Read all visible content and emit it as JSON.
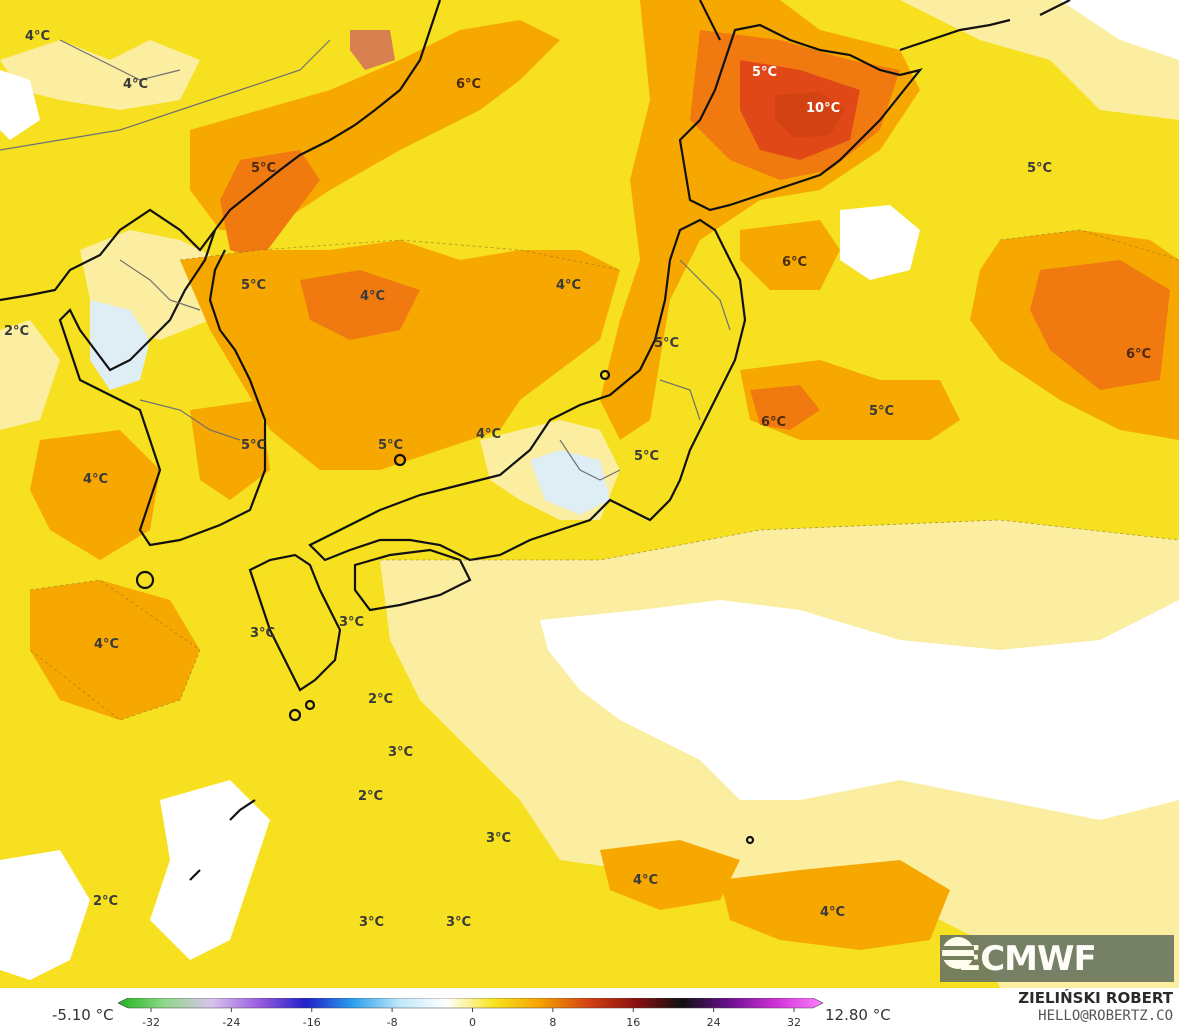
{
  "map": {
    "temperature_labels": [
      {
        "text": "4°C",
        "class": ""
      },
      {
        "text": "4°C",
        "class": ""
      },
      {
        "text": "6°C",
        "class": "warm"
      },
      {
        "text": "5°C",
        "class": "hot"
      },
      {
        "text": "10°C",
        "class": "hot"
      },
      {
        "text": "5°C",
        "class": "warm"
      },
      {
        "text": "5°C",
        "class": ""
      },
      {
        "text": "4°C",
        "class": ""
      },
      {
        "text": "4°C",
        "class": ""
      },
      {
        "text": "6°C",
        "class": "warm"
      },
      {
        "text": "2°C",
        "class": ""
      },
      {
        "text": "5°C",
        "class": ""
      },
      {
        "text": "6°C",
        "class": "warm"
      },
      {
        "text": "5°C",
        "class": ""
      },
      {
        "text": "5°C",
        "class": ""
      },
      {
        "text": "5°C",
        "class": ""
      },
      {
        "text": "4°C",
        "class": ""
      },
      {
        "text": "6°C",
        "class": "warm"
      },
      {
        "text": "5°C",
        "class": ""
      },
      {
        "text": "5°C",
        "class": ""
      },
      {
        "text": "4°C",
        "class": ""
      },
      {
        "text": "3°C",
        "class": ""
      },
      {
        "text": "3°C",
        "class": ""
      },
      {
        "text": "4°C",
        "class": ""
      },
      {
        "text": "2°C",
        "class": ""
      },
      {
        "text": "3°C",
        "class": ""
      },
      {
        "text": "2°C",
        "class": ""
      },
      {
        "text": "3°C",
        "class": ""
      },
      {
        "text": "4°C",
        "class": ""
      },
      {
        "text": "4°C",
        "class": ""
      },
      {
        "text": "2°C",
        "class": ""
      },
      {
        "text": "3°C",
        "class": ""
      },
      {
        "text": "3°C",
        "class": ""
      }
    ]
  },
  "logo": {
    "text": "ECMWF"
  },
  "legend": {
    "min_value": "-5.10 °C",
    "max_value": "12.80 °C",
    "ticks": [
      "-32",
      "-24",
      "-16",
      "-8",
      "0",
      "8",
      "16",
      "24",
      "32"
    ],
    "gradient_colors": [
      "#22b41e",
      "#8fd88a",
      "#d8c4ec",
      "#9a5ce0",
      "#2020c8",
      "#2aa0ee",
      "#bfe9f9",
      "#ffffff",
      "#f7e41e",
      "#f6a000",
      "#d24212",
      "#8e1010",
      "#101010",
      "#6a1090",
      "#d030d8",
      "#ff80ff"
    ]
  },
  "credit": {
    "name": "ZIELIŃSKI ROBERT",
    "email": "HELLO@ROBERTZ.CO"
  },
  "colors": {
    "sea_base": "#f6e020",
    "pale": "#fbeea0",
    "cool": "#ffffff",
    "orange": "#f7a800",
    "dark_orange": "#f07a10",
    "red": "#e04818",
    "land_cold": "#dfeef5",
    "coast": "#111111"
  }
}
